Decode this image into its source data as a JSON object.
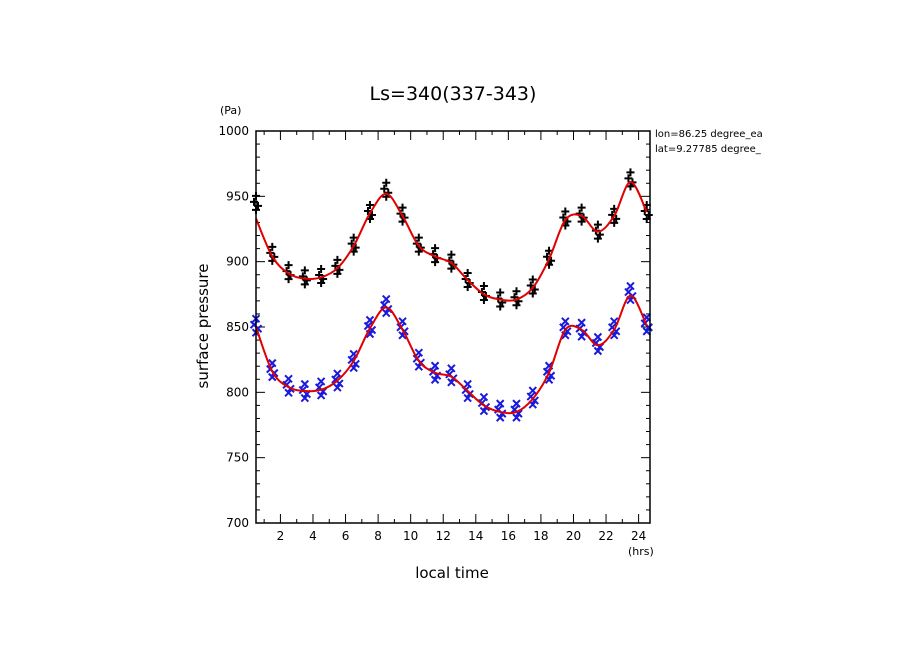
{
  "chart_data": {
    "type": "scatter",
    "title": "Ls=340(337-343)",
    "xlabel": "local time",
    "ylabel": "surface pressure",
    "x_unit": "(hrs)",
    "y_unit": "(Pa)",
    "xlim": [
      0.5,
      24.7
    ],
    "ylim": [
      700,
      1000
    ],
    "x_ticks": [
      2,
      4,
      6,
      8,
      10,
      12,
      14,
      16,
      18,
      20,
      22,
      24
    ],
    "y_ticks": [
      700,
      750,
      800,
      850,
      900,
      950,
      1000
    ],
    "annotations": [
      "lon=86.25 degree_ea",
      "lat=9.27785 degree_"
    ],
    "grid": false,
    "series": [
      {
        "marker": "+",
        "color": "#000000",
        "x": [
          0.5,
          1.5,
          2.5,
          3.5,
          4.5,
          5.5,
          6.5,
          7.5,
          8.5,
          9.5,
          10.5,
          11.5,
          12.5,
          13.5,
          14.5,
          15.5,
          16.5,
          17.5,
          18.5,
          19.5,
          20.5,
          21.5,
          22.5,
          23.5,
          24.5
        ],
        "values": [
          945,
          906,
          892,
          888,
          889,
          896,
          913,
          938,
          955,
          936,
          913,
          905,
          900,
          886,
          876,
          871,
          872,
          881,
          903,
          933,
          936,
          923,
          935,
          963,
          938
        ]
      },
      {
        "marker": "x",
        "color": "#1a1adc",
        "x": [
          0.5,
          1.5,
          2.5,
          3.5,
          4.5,
          5.5,
          6.5,
          7.5,
          8.5,
          9.5,
          10.5,
          11.5,
          12.5,
          13.5,
          14.5,
          15.5,
          16.5,
          17.5,
          18.5,
          19.5,
          20.5,
          21.5,
          22.5,
          23.5,
          24.5
        ],
        "values": [
          851,
          817,
          805,
          801,
          803,
          809,
          824,
          850,
          866,
          849,
          825,
          815,
          813,
          801,
          791,
          786,
          786,
          796,
          815,
          849,
          848,
          837,
          849,
          876,
          852
        ]
      },
      {
        "type": "line",
        "color": "#e00000",
        "x": [
          0.5,
          1.5,
          2.5,
          3.5,
          4.5,
          5.5,
          6.5,
          7.5,
          8.5,
          9.5,
          10.5,
          11.5,
          12.5,
          13.5,
          14.5,
          15.5,
          16.5,
          17.5,
          18.5,
          19.5,
          20.5,
          21.5,
          22.5,
          23.5,
          24.5
        ],
        "values": [
          933,
          904,
          891,
          887,
          888,
          895,
          912,
          937,
          952,
          935,
          912,
          904,
          899,
          886,
          875,
          871,
          871,
          880,
          902,
          932,
          935,
          923,
          935,
          961,
          938
        ]
      },
      {
        "type": "line",
        "color": "#e00000",
        "x": [
          0.5,
          1.5,
          2.5,
          3.5,
          4.5,
          5.5,
          6.5,
          7.5,
          8.5,
          9.5,
          10.5,
          11.5,
          12.5,
          13.5,
          14.5,
          15.5,
          16.5,
          17.5,
          18.5,
          19.5,
          20.5,
          21.5,
          22.5,
          23.5,
          24.5
        ],
        "values": [
          850,
          816,
          804,
          801,
          802,
          809,
          824,
          849,
          865,
          848,
          824,
          815,
          812,
          801,
          790,
          785,
          785,
          795,
          815,
          848,
          848,
          836,
          848,
          874,
          851
        ]
      }
    ]
  }
}
